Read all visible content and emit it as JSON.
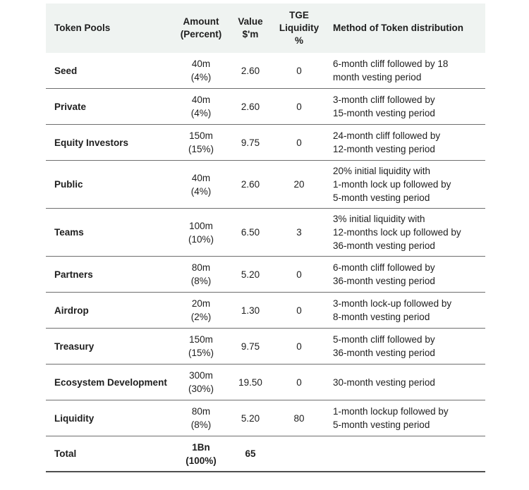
{
  "colors": {
    "header_bg": "#eff3f1",
    "text": "#1e1e1e",
    "row_separator": "#6e6e6e",
    "bottom_border": "#4f4f4f"
  },
  "table": {
    "columns": [
      {
        "id": "pool",
        "label": "Token Pools"
      },
      {
        "id": "amount",
        "label": "Amount\n(Percent)"
      },
      {
        "id": "value",
        "label": "Value\n$'m"
      },
      {
        "id": "tge",
        "label": "TGE\nLiquidity\n%"
      },
      {
        "id": "method",
        "label": "Method of Token distribution"
      }
    ],
    "rows": [
      {
        "pool": "Seed",
        "amount": "40m",
        "percent": "(4%)",
        "value": "2.60",
        "tge": "0",
        "method": "6-month cliff followed by 18\nmonth vesting period",
        "type": "data"
      },
      {
        "pool": "Private",
        "amount": "40m",
        "percent": "(4%)",
        "value": "2.60",
        "tge": "0",
        "method": "3-month cliff followed by\n15-month vesting period",
        "type": "data"
      },
      {
        "pool": "Equity Investors",
        "amount": "150m",
        "percent": "(15%)",
        "value": "9.75",
        "tge": "0",
        "method": "24-month cliff followed by\n12-month vesting period",
        "type": "data"
      },
      {
        "pool": "Public",
        "amount": "40m",
        "percent": "(4%)",
        "value": "2.60",
        "tge": "20",
        "method": "20% initial liquidity with\n1-month lock up followed by\n5-month vesting period",
        "type": "data"
      },
      {
        "pool": "Teams",
        "amount": "100m",
        "percent": "(10%)",
        "value": "6.50",
        "tge": "3",
        "method": "3% initial liquidity with\n12-months lock up followed by\n36-month vesting period",
        "type": "data"
      },
      {
        "pool": "Partners",
        "amount": "80m",
        "percent": "(8%)",
        "value": "5.20",
        "tge": "0",
        "method": "6-month cliff followed by\n36-month vesting period",
        "type": "data"
      },
      {
        "pool": "Airdrop",
        "amount": "20m",
        "percent": "(2%)",
        "value": "1.30",
        "tge": "0",
        "method": "3-month lock-up followed by\n8-month vesting period",
        "type": "data"
      },
      {
        "pool": "Treasury",
        "amount": "150m",
        "percent": "(15%)",
        "value": "9.75",
        "tge": "0",
        "method": "5-month cliff followed by\n36-month vesting period",
        "type": "data"
      },
      {
        "pool": "Ecosystem Development",
        "amount": "300m",
        "percent": "(30%)",
        "value": "19.50",
        "tge": "0",
        "method": "30-month vesting period",
        "type": "data"
      },
      {
        "pool": "Liquidity",
        "amount": "80m",
        "percent": "(8%)",
        "value": "5.20",
        "tge": "80",
        "method": "1-month lockup followed by\n5-month vesting period",
        "type": "data"
      },
      {
        "pool": "Total",
        "amount": "1Bn",
        "percent": "(100%)",
        "value": "65",
        "tge": "",
        "method": "",
        "type": "total"
      }
    ]
  }
}
